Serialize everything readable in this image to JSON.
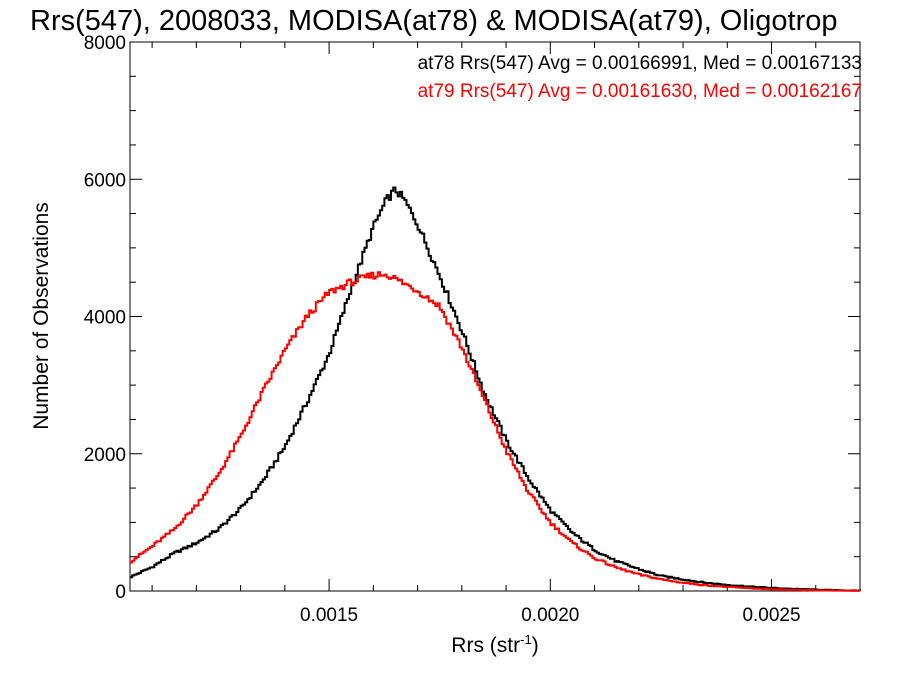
{
  "chart_data": {
    "type": "line",
    "title": "Rrs(547), 2008033, MODISA(at78) & MODISA(at79), Oligotrop",
    "xlabel": "Rrs (str",
    "xlabel_sup": "-1",
    "xlabel_close": ")",
    "ylabel": "Number of Observations",
    "xlim": [
      0.00105,
      0.0027
    ],
    "ylim": [
      0,
      8000
    ],
    "x_ticks": [
      0.0015,
      0.002,
      0.0025
    ],
    "x_tick_labels": [
      "0.0015",
      "0.0020",
      "0.0025"
    ],
    "y_ticks": [
      0,
      2000,
      4000,
      6000,
      8000
    ],
    "y_tick_labels": [
      "0",
      "2000",
      "4000",
      "6000",
      "8000"
    ],
    "grid": false,
    "legend_position": "top-right",
    "series": [
      {
        "name": "at78",
        "color": "#000000",
        "legend_text": "at78 Rrs(547) Avg = 0.00166991, Med = 0.00167133",
        "x": [
          0.00105,
          0.0011,
          0.00115,
          0.0012,
          0.00125,
          0.0013,
          0.00135,
          0.0014,
          0.00145,
          0.0015,
          0.00155,
          0.0016,
          0.00163,
          0.00165,
          0.00167,
          0.0017,
          0.00175,
          0.0018,
          0.00185,
          0.0019,
          0.00195,
          0.002,
          0.00205,
          0.0021,
          0.00215,
          0.0022,
          0.00225,
          0.0023,
          0.00235,
          0.0024,
          0.00245,
          0.0025,
          0.00255,
          0.0026,
          0.00265,
          0.0027
        ],
        "y": [
          200,
          350,
          550,
          700,
          900,
          1200,
          1600,
          2100,
          2750,
          3450,
          4400,
          5300,
          5700,
          5850,
          5700,
          5350,
          4600,
          3800,
          2900,
          2200,
          1650,
          1180,
          850,
          600,
          430,
          320,
          220,
          170,
          120,
          90,
          65,
          45,
          30,
          20,
          12,
          5
        ]
      },
      {
        "name": "at79",
        "color": "#ff0000",
        "legend_text": "at79 Rrs(547) Avg = 0.00161630, Med = 0.00162167",
        "x": [
          0.00105,
          0.0011,
          0.00115,
          0.0012,
          0.00125,
          0.0013,
          0.00135,
          0.0014,
          0.00145,
          0.0015,
          0.00155,
          0.0016,
          0.00163,
          0.00165,
          0.00167,
          0.0017,
          0.00175,
          0.0018,
          0.00185,
          0.0019,
          0.00195,
          0.002,
          0.00205,
          0.0021,
          0.00215,
          0.0022,
          0.00225,
          0.0023,
          0.00235,
          0.0024,
          0.00245,
          0.0025,
          0.00255,
          0.0026,
          0.00265,
          0.0027
        ],
        "y": [
          420,
          650,
          900,
          1250,
          1700,
          2250,
          2900,
          3500,
          4000,
          4350,
          4500,
          4600,
          4620,
          4550,
          4480,
          4380,
          4150,
          3550,
          2800,
          2050,
          1450,
          1000,
          700,
          480,
          340,
          240,
          170,
          120,
          85,
          60,
          40,
          25,
          15,
          10,
          6,
          3
        ]
      }
    ]
  }
}
